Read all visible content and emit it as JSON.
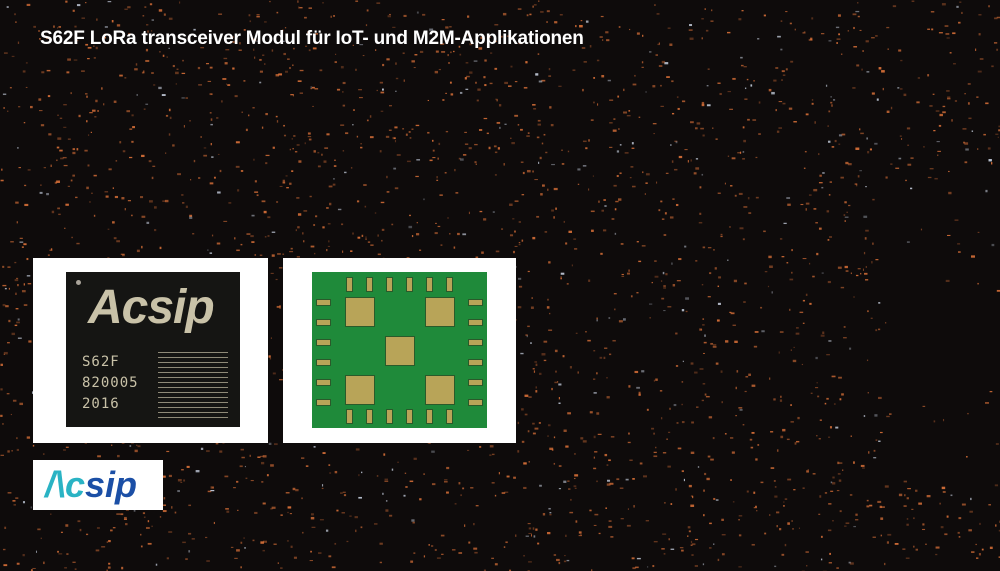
{
  "title": "S62F LoRa transceiver Modul für IoT- und M2M-Applikationen",
  "chip_top": {
    "logo_text": "Acsip",
    "lines": [
      "S62F",
      "820005",
      "2016"
    ]
  },
  "brand_logo": {
    "text": "Acsip"
  },
  "colors": {
    "background": "#0e0b0b",
    "city_lights": "#e0743a",
    "pcb": "#1f8a3a",
    "gold": "#b8a458",
    "logo_teal": "#2ab3c4",
    "logo_blue": "#1b4fa6"
  }
}
